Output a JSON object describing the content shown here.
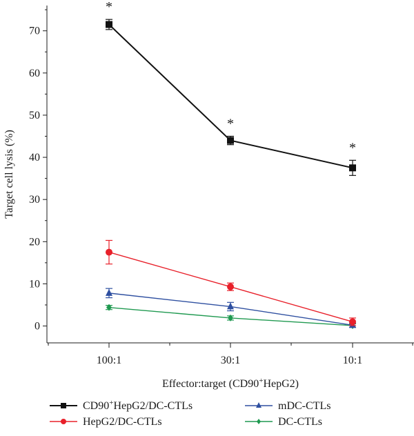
{
  "chart_data": {
    "type": "line",
    "xlabel": "Effector:target (CD90",
    "xlabel_sup": "+",
    "xlabel_tail": "HepG2)",
    "ylabel": "Target cell lysis (%)",
    "categories": [
      "100:1",
      "30:1",
      "10:1"
    ],
    "ylim": [
      -4,
      76
    ],
    "yticks": [
      0,
      10,
      20,
      30,
      40,
      50,
      60,
      70
    ],
    "grid": false,
    "legend_position": "bottom",
    "series": [
      {
        "key": "cd90",
        "name_pre": "CD90",
        "name_sup": "+",
        "name_post": "HepG2/DC-CTLs",
        "color": "#111111",
        "marker": "square",
        "values": [
          71.5,
          44,
          37.5
        ],
        "errors": [
          1.2,
          1.0,
          1.8
        ],
        "significance": [
          "*",
          "*",
          "*"
        ]
      },
      {
        "key": "hepg2",
        "name": "HepG2/DC-CTLs",
        "color": "#e8202a",
        "marker": "circle",
        "values": [
          17.5,
          9.3,
          1.0
        ],
        "errors": [
          2.8,
          0.9,
          0.9
        ]
      },
      {
        "key": "mdc",
        "name": "mDC-CTLs",
        "color": "#2e4fa0",
        "marker": "triangle",
        "values": [
          7.8,
          4.6,
          0.2
        ],
        "errors": [
          1.1,
          1.0,
          0.5
        ]
      },
      {
        "key": "dc",
        "name": "DC-CTLs",
        "color": "#1f9950",
        "marker": "diamond",
        "values": [
          4.4,
          1.9,
          0.1
        ],
        "errors": [
          0.5,
          0.5,
          0.4
        ]
      }
    ]
  }
}
